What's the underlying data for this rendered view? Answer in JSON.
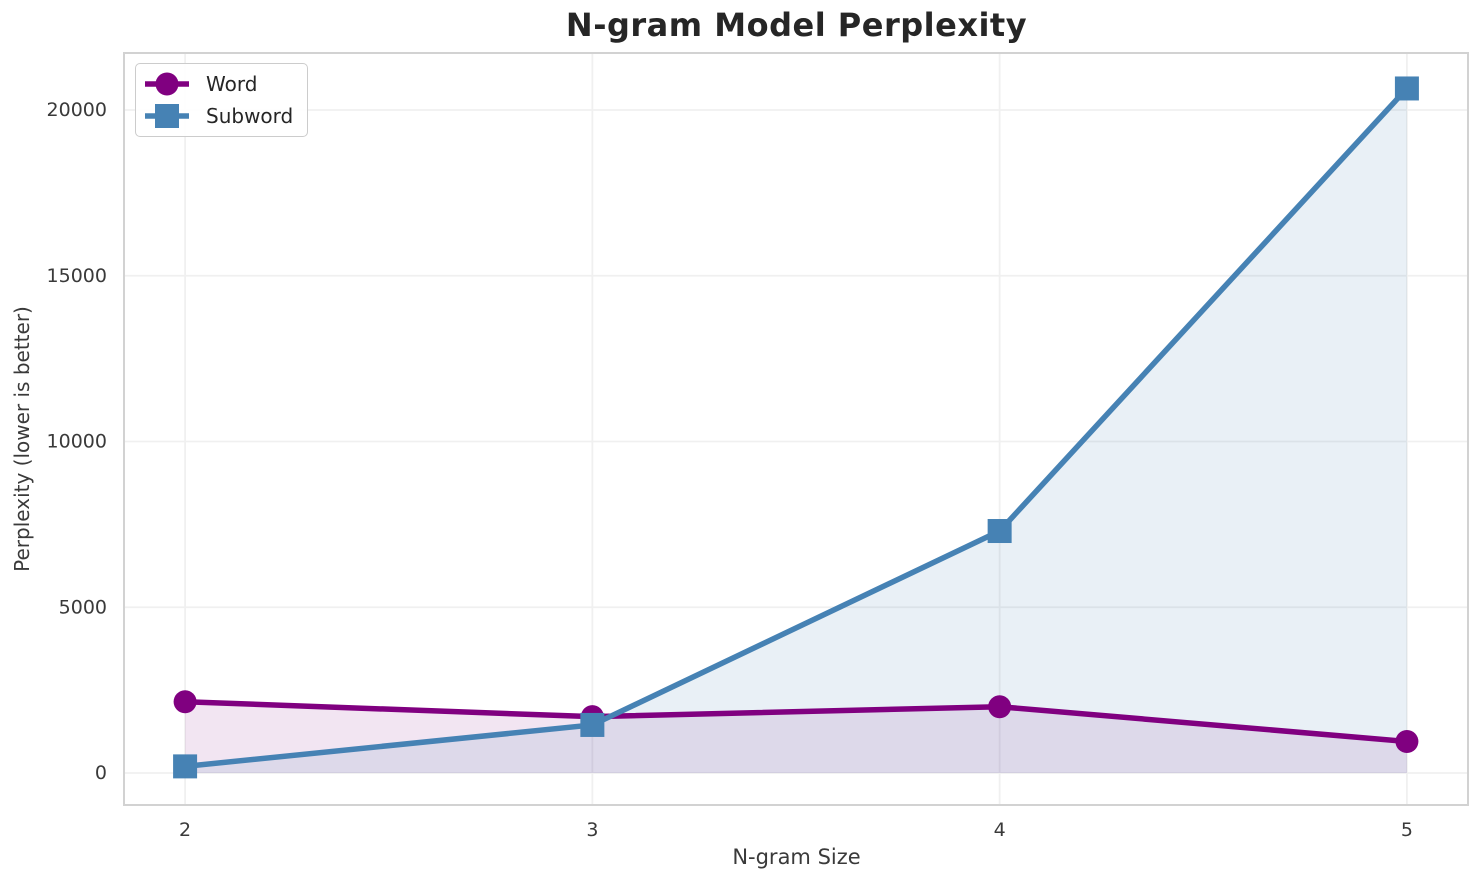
{
  "chart_data": {
    "type": "line",
    "title": "N-gram Model Perplexity",
    "xlabel": "N-gram Size",
    "ylabel": "Perplexity (lower is better)",
    "x": [
      2,
      3,
      4,
      5
    ],
    "series": [
      {
        "name": "Word",
        "color": "#800080",
        "fill_color": "#800080",
        "fill_opacity": 0.1,
        "marker": "circle",
        "values": [
          2150,
          1700,
          2000,
          950
        ]
      },
      {
        "name": "Subword",
        "color": "#4682B4",
        "fill_color": "#4682B4",
        "fill_opacity": 0.12,
        "marker": "square",
        "values": [
          200,
          1450,
          7300,
          20650
        ]
      }
    ],
    "fill_to_zero": true,
    "xticks": {
      "values": [
        2,
        3,
        4,
        5
      ],
      "labels": [
        "2",
        "3",
        "4",
        "5"
      ]
    },
    "yticks": {
      "values": [
        0,
        5000,
        10000,
        15000,
        20000
      ],
      "labels": [
        "0",
        "5000",
        "10000",
        "15000",
        "20000"
      ]
    },
    "xlim": [
      1.85,
      5.15
    ],
    "ylim": [
      -965,
      21720
    ],
    "grid": true,
    "grid_color": "#f0f0f0",
    "spine_color": "#d2d2d2",
    "legend_position": "upper left",
    "text_color": "#262626"
  }
}
